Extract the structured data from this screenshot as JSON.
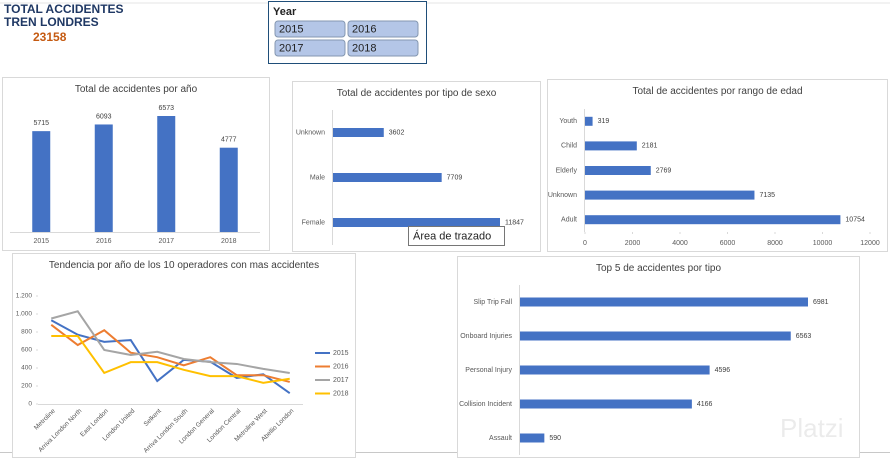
{
  "header": {
    "title_line1": "TOTAL ACCIDENTES",
    "title_line2": "TREN LONDRES",
    "total": 23158
  },
  "slicer": {
    "title": "Year",
    "items": [
      "2015",
      "2016",
      "2017",
      "2018"
    ]
  },
  "tooltip": "Área de trazado",
  "watermark": "Platzi",
  "chart_data": [
    {
      "type": "bar",
      "title": "Total de accidentes por año",
      "color": "#4472c4",
      "categories": [
        "2015",
        "2016",
        "2017",
        "2018"
      ],
      "values": [
        5715,
        6093,
        6573,
        4777
      ]
    },
    {
      "type": "bar",
      "horizontal": true,
      "title": "Total de accidentes por tipo de sexo",
      "color": "#4472c4",
      "categories": [
        "Unknown",
        "Male",
        "Female"
      ],
      "values": [
        3602,
        7709,
        11847
      ]
    },
    {
      "type": "bar",
      "horizontal": true,
      "title": "Total de accidentes por rango de edad",
      "color": "#4472c4",
      "categories": [
        "Youth",
        "Child",
        "Elderly",
        "Unknown",
        "Adult"
      ],
      "values": [
        319,
        2181,
        2769,
        7135,
        10754
      ],
      "xlim": [
        0,
        12000
      ],
      "xticks": [
        0,
        2000,
        4000,
        6000,
        8000,
        10000,
        12000
      ]
    },
    {
      "type": "line",
      "title": "Tendencia por año de los 10 operadores con mas accidentes",
      "legend": "right",
      "categories": [
        "Metroline",
        "Arriva London North",
        "East London",
        "London United",
        "Selkent",
        "Arriva London South",
        "London General",
        "London Central",
        "Metroline West",
        "Abellio London"
      ],
      "ylim": [
        0,
        1200
      ],
      "yticks": [
        0,
        200,
        400,
        600,
        800,
        {
          "value": 1000,
          "label": "1.000"
        },
        {
          "value": 1200,
          "label": "1.200"
        }
      ],
      "series": [
        {
          "name": "2015",
          "color": "#4472c4",
          "values": [
            930,
            770,
            690,
            710,
            255,
            490,
            470,
            290,
            330,
            120
          ]
        },
        {
          "name": "2016",
          "color": "#ed7d31",
          "values": [
            880,
            655,
            820,
            570,
            520,
            430,
            520,
            320,
            320,
            245
          ]
        },
        {
          "name": "2017",
          "color": "#a5a5a5",
          "values": [
            950,
            1030,
            600,
            545,
            580,
            500,
            465,
            445,
            390,
            345
          ]
        },
        {
          "name": "2018",
          "color": "#ffc000",
          "values": [
            755,
            755,
            345,
            465,
            465,
            380,
            310,
            310,
            235,
            280
          ]
        }
      ]
    },
    {
      "type": "bar",
      "horizontal": true,
      "title": "Top 5 de accidentes por tipo",
      "color": "#4472c4",
      "categories": [
        "Slip Trip Fall",
        "Onboard Injuries",
        "Personal Injury",
        "Collision Incident",
        "Assault"
      ],
      "values": [
        6981,
        6563,
        4596,
        4166,
        590
      ]
    }
  ]
}
